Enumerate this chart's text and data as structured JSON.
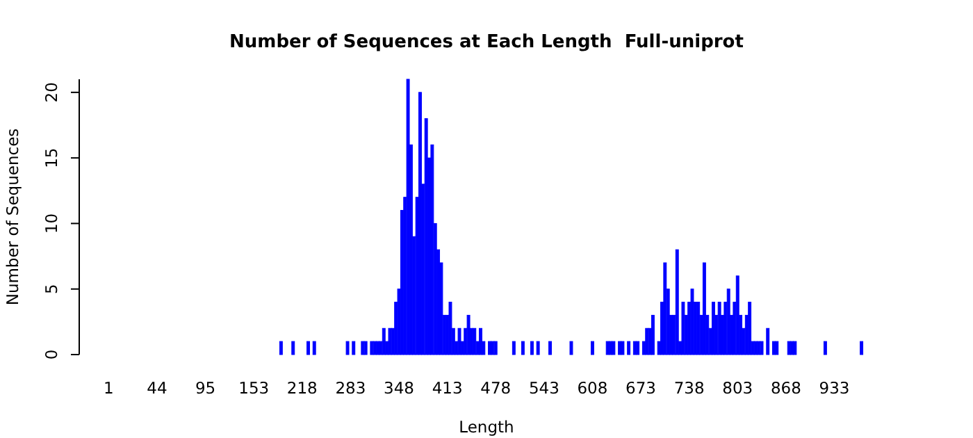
{
  "chart_data": {
    "type": "bar",
    "title": "Number of Sequences at Each Length  Full-uniprot",
    "xlabel": "Length",
    "ylabel": "Number of Sequences",
    "color": "#0000ff",
    "categories": [
      "1",
      null,
      null,
      null,
      null,
      null,
      null,
      null,
      null,
      null,
      null,
      null,
      null,
      null,
      null,
      null,
      "44",
      null,
      null,
      null,
      null,
      null,
      null,
      null,
      null,
      null,
      null,
      null,
      null,
      null,
      null,
      null,
      "95",
      null,
      null,
      null,
      null,
      null,
      null,
      null,
      null,
      null,
      null,
      null,
      null,
      null,
      null,
      null,
      "153",
      null,
      null,
      null,
      null,
      null,
      null,
      null,
      null,
      null,
      null,
      null,
      null,
      null,
      null,
      null,
      "218",
      null,
      null,
      null,
      null,
      null,
      null,
      null,
      null,
      null,
      null,
      null,
      null,
      null,
      null,
      null,
      "283",
      null,
      null,
      null,
      null,
      null,
      null,
      null,
      null,
      null,
      null,
      null,
      null,
      null,
      null,
      null,
      "348",
      null,
      null,
      null,
      null,
      null,
      null,
      null,
      null,
      null,
      null,
      null,
      null,
      null,
      null,
      null,
      "413",
      null,
      null,
      null,
      null,
      null,
      null,
      null,
      null,
      null,
      null,
      null,
      null,
      null,
      null,
      null,
      "478",
      null,
      null,
      null,
      null,
      null,
      null,
      null,
      null,
      null,
      null,
      null,
      null,
      null,
      null,
      null,
      "543",
      null,
      null,
      null,
      null,
      null,
      null,
      null,
      null,
      null,
      null,
      null,
      null,
      null,
      null,
      null,
      "608",
      null,
      null,
      null,
      null,
      null,
      null,
      null,
      null,
      null,
      null,
      null,
      null,
      null,
      null,
      null,
      "673",
      null,
      null,
      null,
      null,
      null,
      null,
      null,
      null,
      null,
      null,
      null,
      null,
      null,
      null,
      null,
      "738",
      null,
      null,
      null,
      null,
      null,
      null,
      null,
      null,
      null,
      null,
      null,
      null,
      null,
      null,
      null,
      "803",
      null,
      null,
      null,
      null,
      null,
      null,
      null,
      null,
      null,
      null,
      null,
      null,
      null,
      null,
      null,
      "868",
      null,
      null,
      null,
      null,
      null,
      null,
      null,
      null,
      null,
      null,
      null,
      null,
      null,
      null,
      null,
      "933",
      null,
      null,
      null,
      null,
      null,
      null,
      null,
      null,
      null
    ],
    "values": [
      0,
      0,
      0,
      0,
      0,
      0,
      0,
      0,
      0,
      0,
      0,
      0,
      0,
      0,
      0,
      0,
      0,
      0,
      0,
      0,
      0,
      0,
      0,
      0,
      0,
      0,
      0,
      0,
      0,
      0,
      0,
      0,
      0,
      0,
      0,
      0,
      0,
      0,
      0,
      0,
      0,
      0,
      0,
      0,
      0,
      0,
      0,
      0,
      0,
      0,
      0,
      0,
      0,
      0,
      0,
      0,
      0,
      1,
      0,
      0,
      0,
      1,
      0,
      0,
      0,
      0,
      1,
      0,
      1,
      0,
      0,
      0,
      0,
      0,
      0,
      0,
      0,
      0,
      0,
      1,
      0,
      1,
      0,
      0,
      1,
      1,
      0,
      1,
      1,
      1,
      1,
      2,
      1,
      2,
      2,
      4,
      5,
      11,
      12,
      21,
      16,
      9,
      12,
      20,
      13,
      18,
      15,
      16,
      10,
      8,
      7,
      3,
      3,
      4,
      2,
      1,
      2,
      1,
      2,
      3,
      2,
      2,
      1,
      2,
      1,
      0,
      1,
      1,
      1,
      0,
      0,
      0,
      0,
      0,
      1,
      0,
      0,
      1,
      0,
      0,
      1,
      0,
      1,
      0,
      0,
      0,
      1,
      0,
      0,
      0,
      0,
      0,
      0,
      1,
      0,
      0,
      0,
      0,
      0,
      0,
      1,
      0,
      0,
      0,
      0,
      1,
      1,
      1,
      0,
      1,
      1,
      0,
      1,
      0,
      1,
      1,
      0,
      1,
      2,
      2,
      3,
      0,
      1,
      4,
      7,
      5,
      3,
      3,
      8,
      1,
      4,
      3,
      4,
      5,
      4,
      4,
      3,
      7,
      3,
      2,
      4,
      3,
      4,
      3,
      4,
      5,
      3,
      4,
      6,
      3,
      2,
      3,
      4,
      1,
      1,
      1,
      1,
      0,
      2,
      0,
      1,
      1,
      0,
      0,
      0,
      1,
      1,
      1,
      0,
      0,
      0,
      0,
      0,
      0,
      0,
      0,
      0,
      1,
      0,
      0,
      0,
      0,
      0,
      0,
      0,
      0,
      0,
      0,
      0,
      1
    ],
    "ylim": [
      0,
      21
    ],
    "yticks": [
      0,
      5,
      10,
      15,
      20
    ]
  }
}
